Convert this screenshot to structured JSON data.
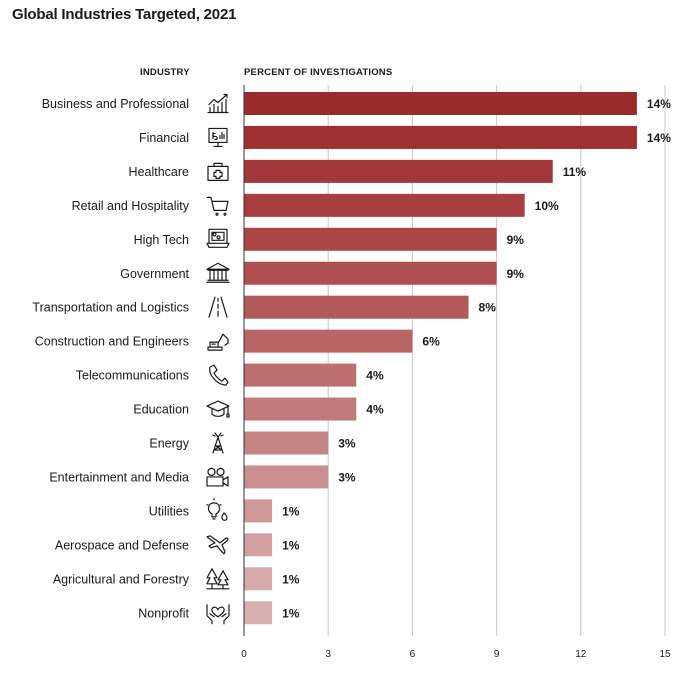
{
  "page": {
    "title": "Global Industries Targeted, 2021"
  },
  "chart_data": {
    "type": "bar",
    "orientation": "horizontal",
    "title": "Global Industries Targeted, 2021",
    "category_header": "INDUSTRY",
    "value_header": "PERCENT OF INVESTIGATIONS",
    "xlim": [
      0,
      15
    ],
    "xticks": [
      0,
      3,
      6,
      9,
      12,
      15
    ],
    "grid": true,
    "categories": [
      "Business and Professional",
      "Financial",
      "Healthcare",
      "Retail and Hospitality",
      "High Tech",
      "Government",
      "Transportation and Logistics",
      "Construction and Engineers",
      "Telecommunications",
      "Education",
      "Energy",
      "Entertainment and Media",
      "Utilities",
      "Aerospace and Defense",
      "Agricultural and Forestry",
      "Nonprofit"
    ],
    "values": [
      14,
      14,
      11,
      10,
      9,
      9,
      8,
      6,
      4,
      4,
      3,
      3,
      1,
      1,
      1,
      1
    ],
    "value_labels": [
      "14%",
      "14%",
      "11%",
      "10%",
      "9%",
      "9%",
      "8%",
      "6%",
      "4%",
      "4%",
      "3%",
      "3%",
      "1%",
      "1%",
      "1%",
      "1%"
    ],
    "icons": [
      "growth-chart-icon",
      "money-board-icon",
      "first-aid-kit-icon",
      "shopping-cart-icon",
      "computer-icon",
      "government-building-icon",
      "road-icon",
      "excavator-icon",
      "telephone-icon",
      "graduation-cap-icon",
      "transmission-tower-icon",
      "film-camera-icon",
      "lightbulb-water-icon",
      "airplane-icon",
      "trees-icon",
      "hands-heart-icon"
    ],
    "bar_colors": [
      "#9b2a2b",
      "#9f2f31",
      "#a33638",
      "#a73d3f",
      "#ab4647",
      "#af4f51",
      "#b3595a",
      "#b96465",
      "#bd6e6f",
      "#c27979",
      "#c68383",
      "#ca8d8d",
      "#cf9797",
      "#d2a0a0",
      "#d6aaaa",
      "#d9b0b0"
    ],
    "grid_color": "#c8c8c8",
    "axis_color": "#333333"
  }
}
